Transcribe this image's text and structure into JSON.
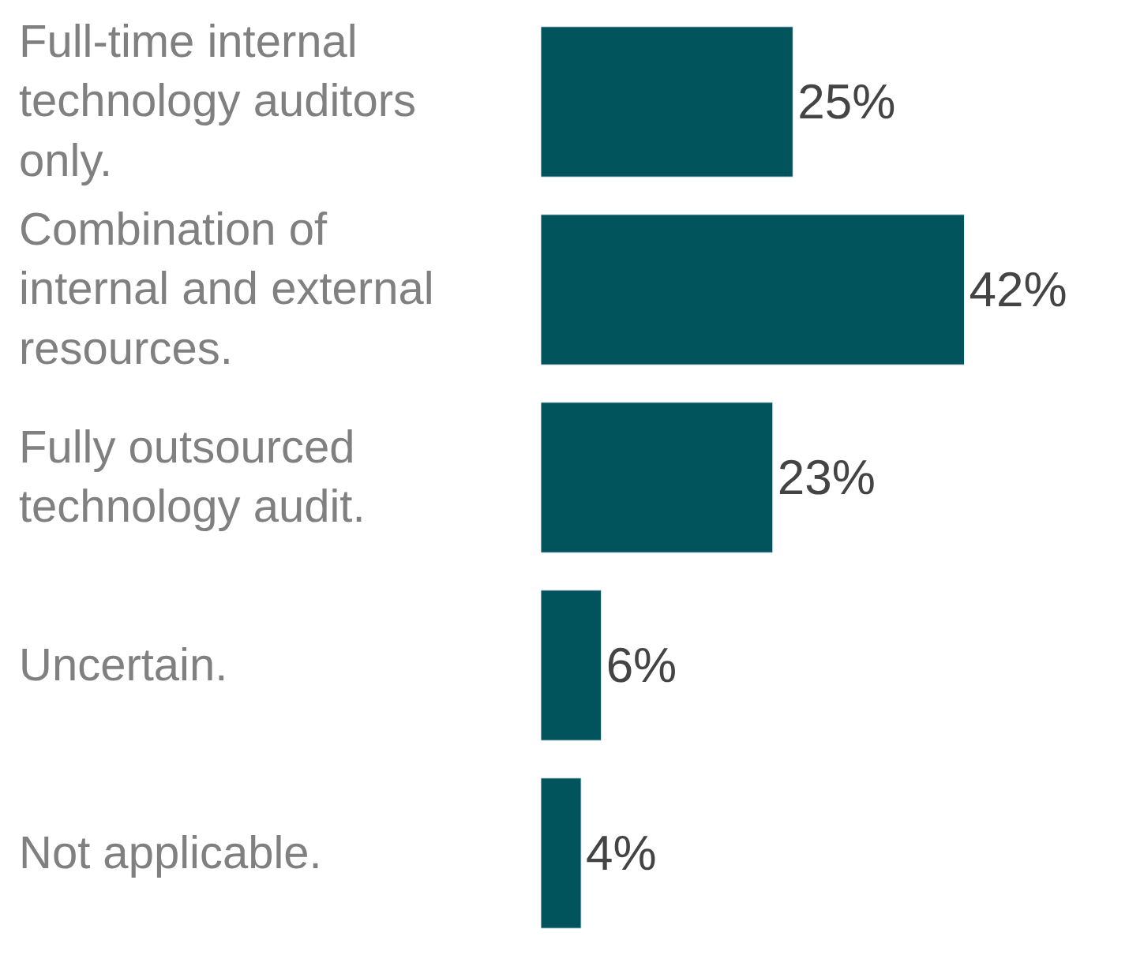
{
  "chart_data": {
    "type": "bar",
    "orientation": "horizontal",
    "categories": [
      "Full-time internal technology auditors only.",
      "Combination of internal and external resources.",
      "Fully outsourced technology audit.",
      "Uncertain.",
      "Not applicable."
    ],
    "values": [
      25,
      42,
      23,
      6,
      4
    ],
    "value_labels": [
      "25%",
      "42%",
      "23%",
      "6%",
      "4%"
    ],
    "color": "#01535c",
    "tick_labels": false
  }
}
